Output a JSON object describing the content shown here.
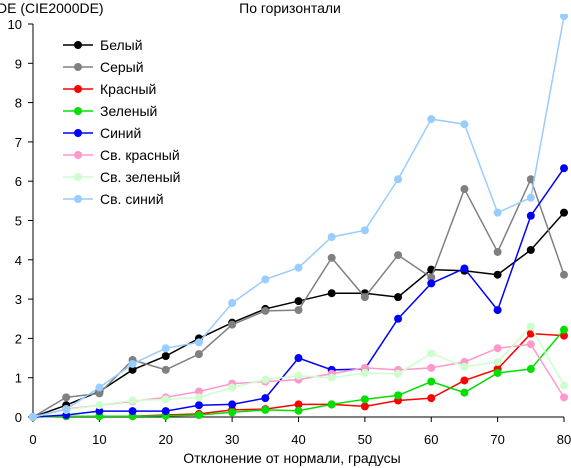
{
  "chart_data": {
    "type": "line",
    "title": "По горизонтали",
    "ylabel": "DE (CIE2000DE)",
    "xlabel": "Отклонение от нормали, градусы",
    "xlim": [
      0,
      80
    ],
    "ylim": [
      0,
      10
    ],
    "x_ticks": [
      0,
      10,
      20,
      30,
      40,
      50,
      60,
      70,
      80
    ],
    "y_ticks": [
      0,
      1,
      2,
      3,
      4,
      5,
      6,
      7,
      8,
      9,
      10
    ],
    "grid": false,
    "legend_position": "top-left",
    "x": [
      0,
      5,
      10,
      15,
      20,
      25,
      30,
      35,
      40,
      45,
      50,
      55,
      60,
      65,
      70,
      75,
      80
    ],
    "series": [
      {
        "name": "Белый",
        "color": "#000000",
        "values": [
          0,
          0.3,
          0.65,
          1.2,
          1.55,
          2.0,
          2.4,
          2.75,
          2.95,
          3.15,
          3.15,
          3.05,
          3.75,
          3.72,
          3.62,
          4.25,
          5.2
        ]
      },
      {
        "name": "Серый",
        "color": "#808080",
        "values": [
          0,
          0.5,
          0.6,
          1.45,
          1.2,
          1.6,
          2.35,
          2.7,
          2.72,
          4.05,
          3.05,
          4.12,
          3.55,
          5.8,
          4.2,
          6.05,
          3.62
        ]
      },
      {
        "name": "Красный",
        "color": "#ff0000",
        "values": [
          0,
          0.02,
          0.02,
          0.02,
          0.05,
          0.08,
          0.18,
          0.2,
          0.32,
          0.32,
          0.27,
          0.42,
          0.48,
          0.93,
          1.22,
          2.12,
          2.07
        ]
      },
      {
        "name": "Зеленый",
        "color": "#00e000",
        "values": [
          0,
          0.02,
          0.02,
          0.02,
          0.03,
          0.05,
          0.12,
          0.18,
          0.16,
          0.32,
          0.45,
          0.55,
          0.9,
          0.62,
          1.12,
          1.22,
          2.22
        ]
      },
      {
        "name": "Синий",
        "color": "#0000ff",
        "values": [
          0,
          0.05,
          0.15,
          0.15,
          0.15,
          0.3,
          0.32,
          0.48,
          1.5,
          1.2,
          1.22,
          2.5,
          3.4,
          3.78,
          2.72,
          5.12,
          6.33
        ]
      },
      {
        "name": "Св. красный",
        "color": "#ff99cc",
        "values": [
          0,
          0.2,
          0.3,
          0.4,
          0.5,
          0.65,
          0.85,
          0.9,
          0.95,
          1.1,
          1.25,
          1.2,
          1.25,
          1.4,
          1.75,
          1.85,
          0.5
        ]
      },
      {
        "name": "Св. зеленый",
        "color": "#ccffcc",
        "values": [
          0,
          0.18,
          0.3,
          0.42,
          0.45,
          0.5,
          0.75,
          0.95,
          1.05,
          1.0,
          1.12,
          1.1,
          1.62,
          1.28,
          1.4,
          2.3,
          0.8
        ]
      },
      {
        "name": "Св. синий",
        "color": "#99ccff",
        "values": [
          0,
          0.2,
          0.75,
          1.35,
          1.75,
          1.9,
          2.9,
          3.5,
          3.8,
          4.58,
          4.75,
          6.05,
          7.58,
          7.45,
          5.2,
          5.58,
          10.2
        ]
      }
    ]
  }
}
